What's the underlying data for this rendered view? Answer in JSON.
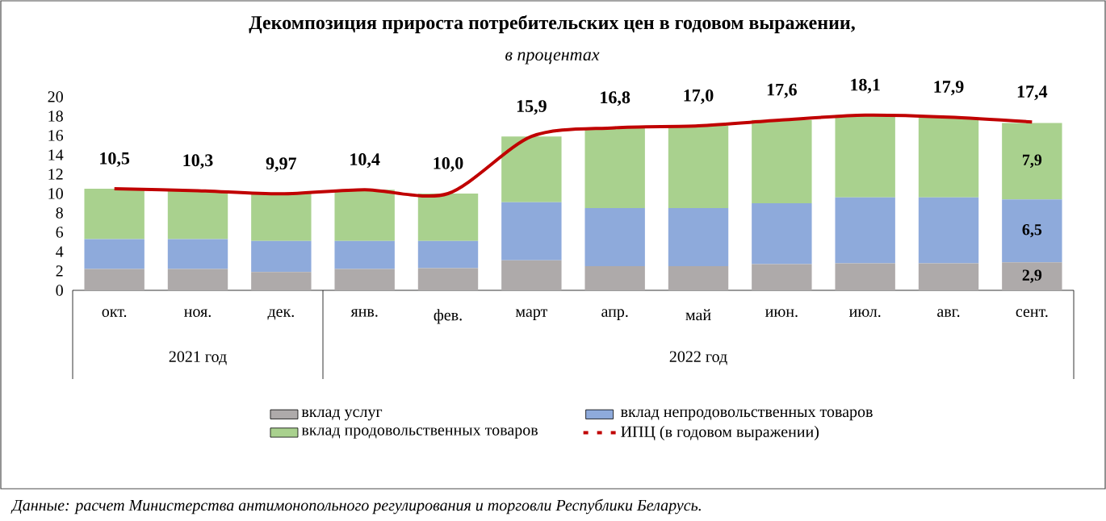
{
  "chart_data": {
    "type": "bar",
    "stacked": true,
    "title": "Декомпозиция прироста потребительских цен в годовом выражении,",
    "subtitle": "в процентах",
    "categories": [
      "окт.",
      "ноя.",
      "дек.",
      "янв.",
      "фев.",
      "март",
      "апр.",
      "май",
      "июн.",
      "июл.",
      "авг.",
      "сент."
    ],
    "series": [
      {
        "name": "вклад услуг",
        "color": "#aeaaaa",
        "values": [
          2.2,
          2.2,
          1.9,
          2.2,
          2.3,
          3.1,
          2.5,
          2.5,
          2.7,
          2.8,
          2.8,
          2.9
        ],
        "value_labels": [
          null,
          null,
          null,
          null,
          null,
          null,
          null,
          null,
          null,
          null,
          null,
          "2,9"
        ]
      },
      {
        "name": "вклад непродовольственных товаров",
        "color": "#8eaadb",
        "values": [
          3.1,
          3.1,
          3.2,
          2.9,
          2.8,
          6.0,
          6.0,
          6.0,
          6.3,
          6.8,
          6.8,
          6.5
        ],
        "value_labels": [
          null,
          null,
          null,
          null,
          null,
          null,
          null,
          null,
          null,
          null,
          null,
          "6,5"
        ]
      },
      {
        "name": "вклад продовольственных товаров",
        "color": "#a9d18e",
        "values": [
          5.2,
          5.0,
          4.9,
          5.3,
          4.9,
          6.8,
          8.3,
          8.5,
          8.6,
          8.5,
          8.3,
          7.9
        ],
        "value_labels": [
          null,
          null,
          null,
          null,
          null,
          null,
          null,
          null,
          null,
          null,
          null,
          "7,9"
        ]
      },
      {
        "name": "ИПЦ (в годовом выражении)",
        "type": "line",
        "color": "#c00000",
        "values": [
          10.5,
          10.3,
          9.97,
          10.4,
          10.0,
          15.9,
          16.8,
          17.0,
          17.6,
          18.1,
          17.9,
          17.4
        ],
        "value_labels": [
          "10,5",
          "10,3",
          "9,97",
          "10,4",
          "10,0",
          "15,9",
          "16,8",
          "17,0",
          "17,6",
          "18,1",
          "17,9",
          "17,4"
        ]
      }
    ],
    "ylim": [
      0,
      20
    ],
    "yticks": [
      0,
      2,
      4,
      6,
      8,
      10,
      12,
      14,
      16,
      18,
      20
    ],
    "legend": "bottom",
    "marker": "none",
    "line_style": "solid",
    "grid": false,
    "annotations": [
      "2021 год",
      "2022 год",
      "Данные: расчет Министерства антимонопольного регулирования и торговли Республики Беларусь."
    ]
  }
}
